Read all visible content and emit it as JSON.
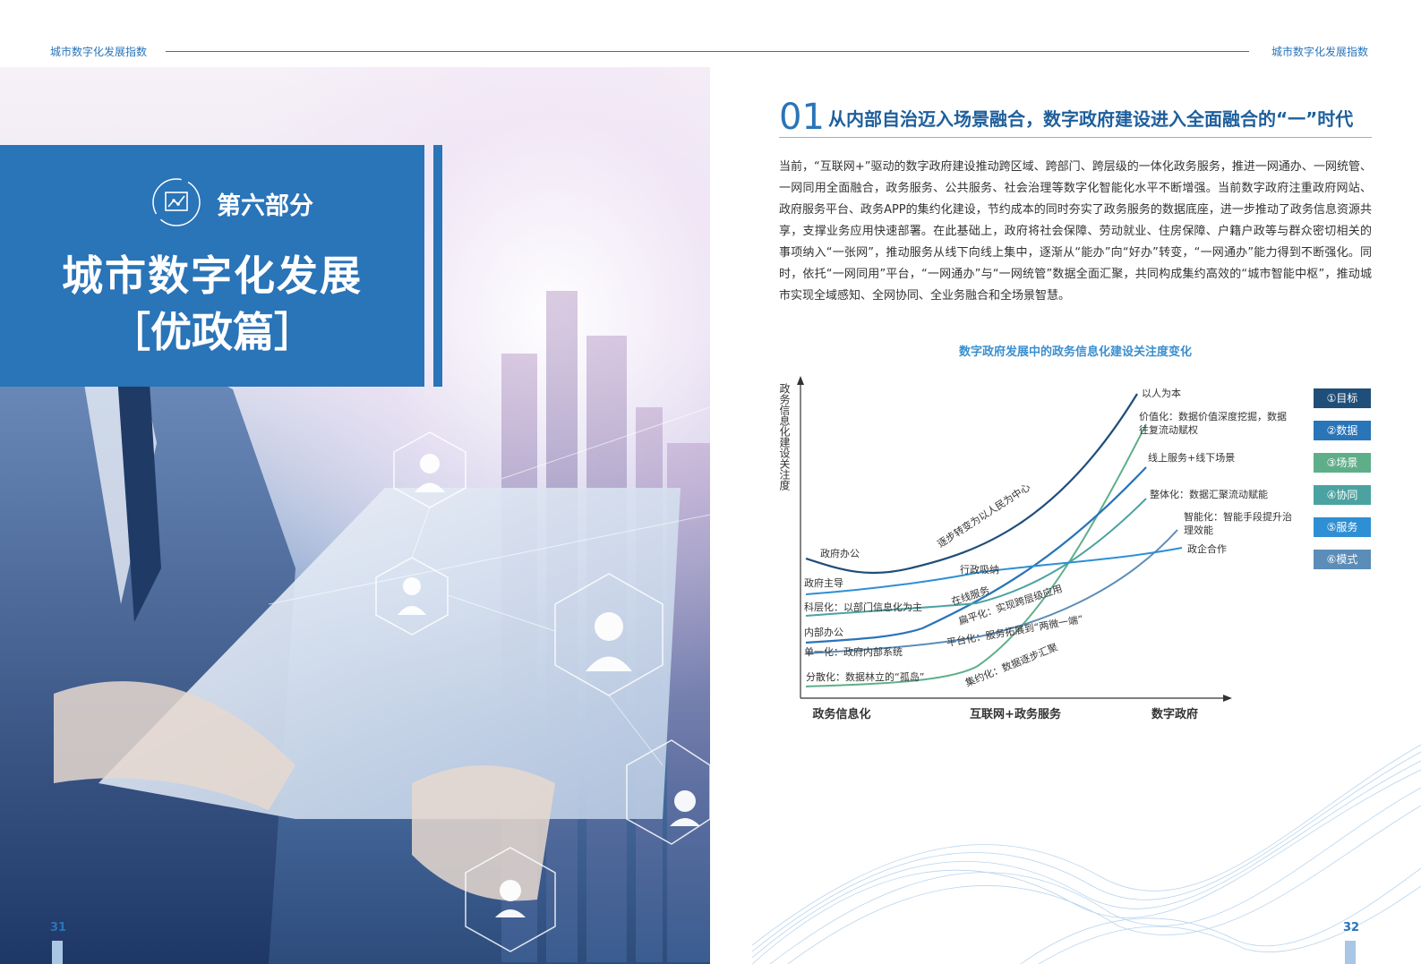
{
  "header": {
    "left_title": "城市数字化发展指数",
    "right_title": "城市数字化发展指数"
  },
  "left_page": {
    "section_label": "第六部分",
    "title": "城市数字化发展",
    "subtitle": "［优政篇］",
    "page_number": "31",
    "icon": "chart-icon"
  },
  "right_page": {
    "section_number": "01",
    "section_heading": "从内部自治迈入场景融合，数字政府建设进入全面融合的“一”时代",
    "body_paragraph": "当前，“互联网+”驱动的数字政府建设推动跨区域、跨部门、跨层级的一体化政务服务，推进一网通办、一网统管、一网同用全面融合，政务服务、公共服务、社会治理等数字化智能化水平不断增强。当前数字政府注重政府网站、政府服务平台、政务APP的集约化建设，节约成本的同时夯实了政务服务的数据底座，进一步推动了政务信息资源共享，支撑业务应用快速部署。在此基础上，政府将社会保障、劳动就业、住房保障、户籍户政等与群众密切相关的事项纳入“一张网”，推动服务从线下向线上集中，逐渐从“能办”向“好办”转变，“一网通办”能力得到不断强化。同时，依托“一网同用”平台，“一网通办”与“一网统管”数据全面汇聚，共同构成集约高效的“城市智能中枢”，推动城市实现全域感知、全网协同、全业务融合和全场景智慧。",
    "page_number": "32"
  },
  "chart_data": {
    "type": "line",
    "title": "数字政府发展中的政务信息化建设关注度变化",
    "ylabel": "政务信息化建设关注度",
    "x_stages": [
      "政务信息化",
      "互联网+政务服务",
      "数字政府"
    ],
    "legend": [
      {
        "label": "①目标",
        "color": "#1f4e79"
      },
      {
        "label": "②数据",
        "color": "#2a74b8"
      },
      {
        "label": "③场景",
        "color": "#5fae8a"
      },
      {
        "label": "④协同",
        "color": "#4aa3a0"
      },
      {
        "label": "⑤服务",
        "color": "#2f8fd4"
      },
      {
        "label": "⑥模式",
        "color": "#5b8db8"
      }
    ],
    "series": [
      {
        "name": "①目标",
        "start_label": "政府办公",
        "mid_label": "逐步转变为以人民为中心",
        "end_label": "以人为本"
      },
      {
        "name": "②数据",
        "start_label": "分散化：数据林立的“孤岛”",
        "mid_label": "集约化：数据逐步汇聚",
        "end_label": "价值化：数据价值深度挖掘，数据往复流动赋权"
      },
      {
        "name": "③场景",
        "start_label": "内部办公",
        "mid_label": "在线服务",
        "end_label": "线上服务+线下场景"
      },
      {
        "name": "④协同",
        "start_label": "科层化：以部门信息化为主",
        "mid_label": "扁平化：实现跨层级应用",
        "end_label": "整体化：数据汇聚流动赋能"
      },
      {
        "name": "⑤服务",
        "start_label": "单一化：政府内部系统",
        "mid_label": "平台化：服务拓展到“两微一端”",
        "end_label": "智能化：智能手段提升治理效能"
      },
      {
        "name": "⑥模式",
        "start_label": "政府主导",
        "mid_label": "行政吸纳",
        "end_label": "政企合作"
      }
    ]
  }
}
